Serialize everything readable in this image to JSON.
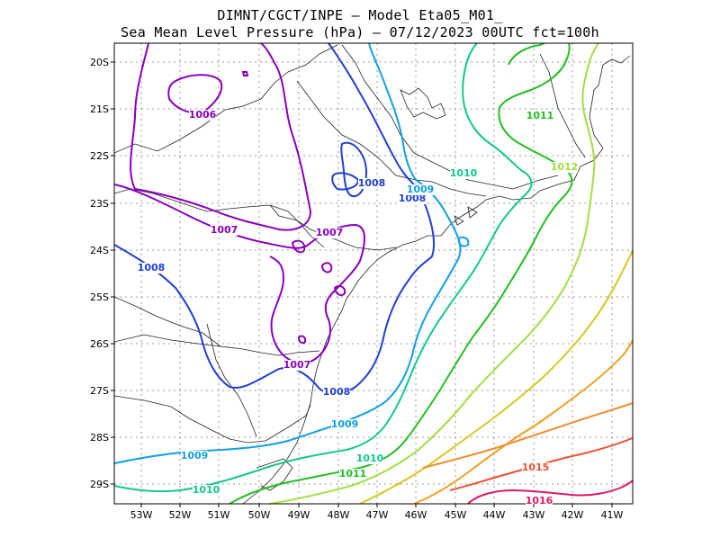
{
  "header": {
    "line1": "DIMNT/CGCT/INPE –  Model Eta05_M01_",
    "line2": "Sea Mean Level Pressure (hPa) – 07/12/2023 00UTC fct=100h"
  },
  "axes": {
    "lat_labels": [
      "20S",
      "21S",
      "22S",
      "23S",
      "24S",
      "25S",
      "26S",
      "27S",
      "28S",
      "29S"
    ],
    "lon_labels": [
      "53W",
      "52W",
      "51W",
      "50W",
      "49W",
      "48W",
      "47W",
      "46W",
      "45W",
      "44W",
      "43W",
      "42W",
      "41W"
    ]
  },
  "contour_labels": [
    {
      "text": "1006",
      "level": 1006
    },
    {
      "text": "1007",
      "level": 1007
    },
    {
      "text": "1007",
      "level": 1007
    },
    {
      "text": "1007",
      "level": 1007
    },
    {
      "text": "1008",
      "level": 1008
    },
    {
      "text": "1008",
      "level": 1008
    },
    {
      "text": "1008",
      "level": 1008
    },
    {
      "text": "1008",
      "level": 1008
    },
    {
      "text": "1009",
      "level": 1009
    },
    {
      "text": "1009",
      "level": 1009
    },
    {
      "text": "1009",
      "level": 1009
    },
    {
      "text": "1010",
      "level": 1010
    },
    {
      "text": "1010",
      "level": 1010
    },
    {
      "text": "1010",
      "level": 1010
    },
    {
      "text": "1011",
      "level": 1011
    },
    {
      "text": "1011",
      "level": 1011
    },
    {
      "text": "1012",
      "level": 1012
    },
    {
      "text": "1015",
      "level": 1015
    },
    {
      "text": "1016",
      "level": 1016
    }
  ],
  "colors": {
    "1006": "#8a00c0",
    "1007": "#8a00c0",
    "1008": "#2040d8",
    "1009": "#10a0e8",
    "1010": "#10c890",
    "1011": "#20c020",
    "1012": "#a0e040",
    "1013": "#d8c820",
    "1014": "#f0a020",
    "1015": "#f05030",
    "1016": "#e01868"
  }
}
